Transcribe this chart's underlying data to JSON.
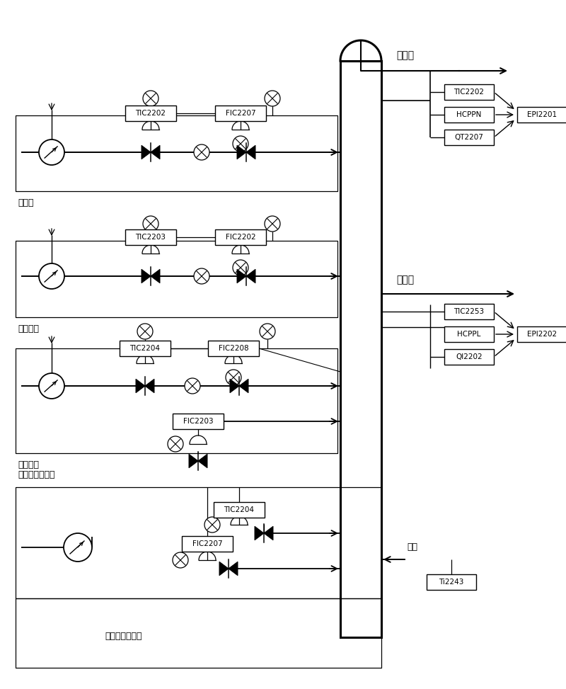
{
  "figsize": [
    8.0,
    9.73
  ],
  "dpi": 100,
  "labels": {
    "crude_gasoline": "粗汽油",
    "light_diesel": "轻柴油",
    "feed": "进料",
    "top_loop": "顶循环",
    "mid1_loop": "一中循环",
    "mid2_loop": "二中循环",
    "upper_slurry": "上塔底油浆循环",
    "lower_slurry": "下塔底油浆循环"
  }
}
